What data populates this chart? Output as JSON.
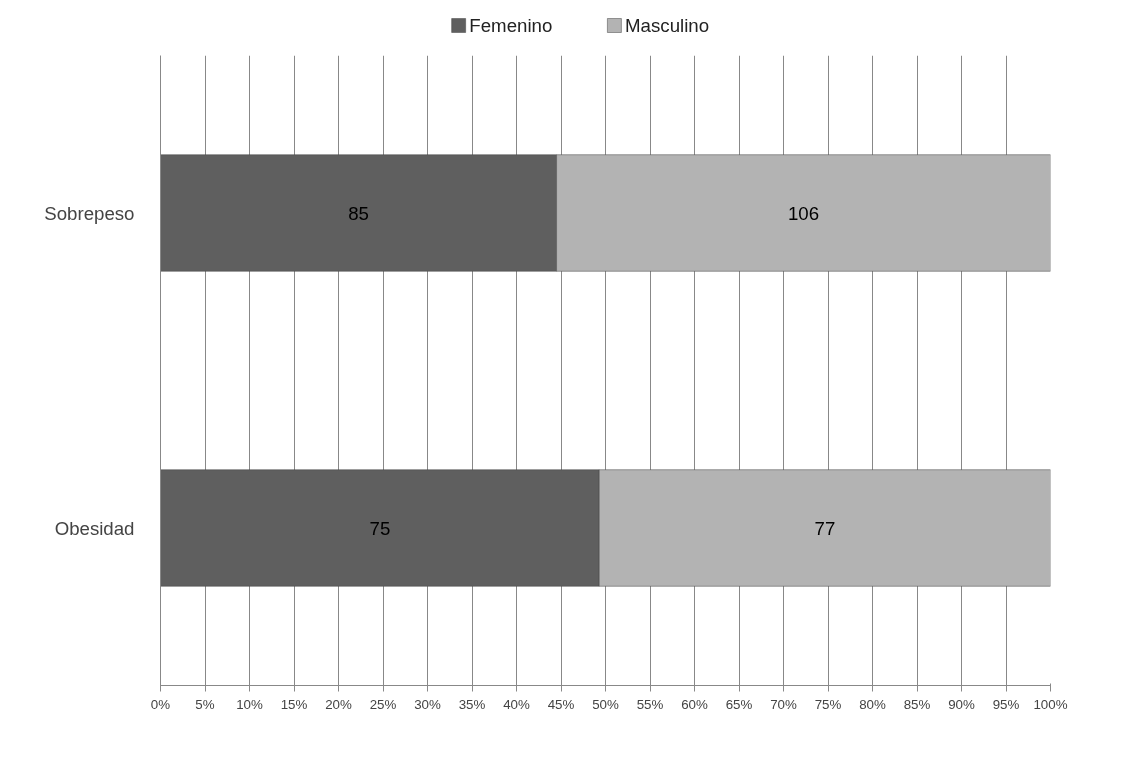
{
  "chart_data": {
    "type": "bar",
    "orientation": "horizontal",
    "stacked": true,
    "categories": [
      "Sobrepeso",
      "Obesidad"
    ],
    "series": [
      {
        "name": "Femenino",
        "color": "#5f5f5f",
        "values": [
          44.5,
          49.3
        ]
      },
      {
        "name": "Masculino",
        "color": "#b3b3b3",
        "values": [
          55.5,
          50.7
        ]
      }
    ],
    "annotations": [
      "85",
      "75",
      "106",
      "77"
    ],
    "xlim": [
      0,
      100
    ],
    "xticks": [
      {
        "value": 0,
        "label": "0%"
      },
      {
        "value": 5,
        "label": "5%"
      },
      {
        "value": 10,
        "label": "10%"
      },
      {
        "value": 15,
        "label": "15%"
      },
      {
        "value": 20,
        "label": "20%"
      },
      {
        "value": 25,
        "label": "25%"
      },
      {
        "value": 30,
        "label": "30%"
      },
      {
        "value": 35,
        "label": "35%"
      },
      {
        "value": 40,
        "label": "40%"
      },
      {
        "value": 45,
        "label": "45%"
      },
      {
        "value": 50,
        "label": "50%"
      },
      {
        "value": 55,
        "label": "55%"
      },
      {
        "value": 60,
        "label": "60%"
      },
      {
        "value": 65,
        "label": "65%"
      },
      {
        "value": 70,
        "label": "70%"
      },
      {
        "value": 75,
        "label": "75%"
      },
      {
        "value": 80,
        "label": "80%"
      },
      {
        "value": 85,
        "label": "85%"
      },
      {
        "value": 90,
        "label": "90%"
      },
      {
        "value": 95,
        "label": "95%"
      },
      {
        "value": 100,
        "label": "100%"
      }
    ],
    "grid": "x",
    "legend": "top"
  }
}
